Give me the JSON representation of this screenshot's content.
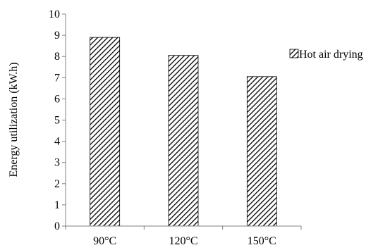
{
  "chart_data": {
    "type": "bar",
    "categories": [
      "90°C",
      "120°C",
      "150°C"
    ],
    "series": [
      {
        "name": "Hot air drying",
        "values": [
          8.9,
          8.05,
          7.05
        ]
      }
    ],
    "ylabel": "Energy utilization (kW.h)",
    "xlabel": "",
    "ylim": [
      0,
      10
    ],
    "yticks": [
      "0",
      "1",
      "2",
      "3",
      "4",
      "5",
      "6",
      "7",
      "8",
      "9",
      "10"
    ],
    "grid": false,
    "legend_position": "right",
    "bar_fill": "diagonal-hatch",
    "colors": {
      "bar_stroke": "#000000",
      "hatch": "#000000",
      "axis": "#808080"
    }
  }
}
